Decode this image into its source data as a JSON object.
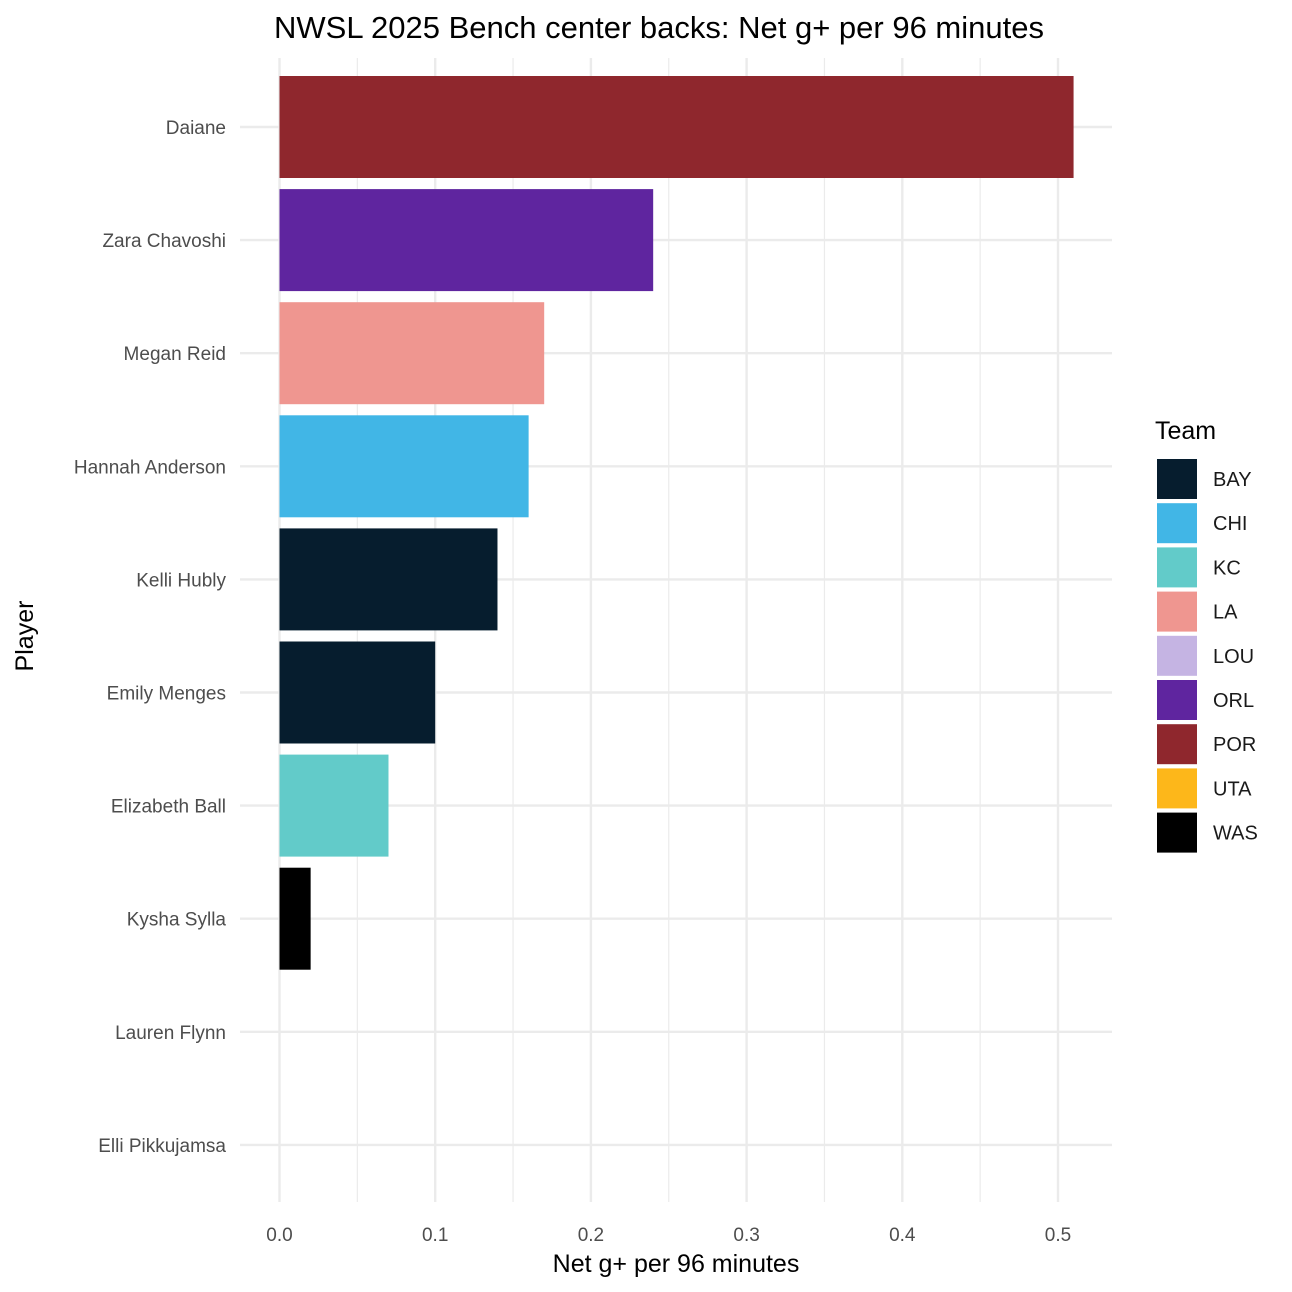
{
  "chart_data": {
    "type": "bar",
    "orientation": "horizontal",
    "title": "NWSL 2025 Bench center backs: Net g+ per 96 minutes",
    "xlabel": "Net g+ per 96 minutes",
    "ylabel": "Player",
    "xlim": [
      -0.025,
      0.535
    ],
    "x_ticks": [
      0.0,
      0.1,
      0.2,
      0.3,
      0.4,
      0.5
    ],
    "x_tick_labels": [
      "0.0",
      "0.1",
      "0.2",
      "0.3",
      "0.4",
      "0.5"
    ],
    "grid": true,
    "legend": {
      "title": "Team",
      "position": "right",
      "entries": [
        {
          "label": "BAY",
          "color": "#061d2e"
        },
        {
          "label": "CHI",
          "color": "#41b6e6"
        },
        {
          "label": "KC",
          "color": "#62cbc9"
        },
        {
          "label": "LA",
          "color": "#ef9690"
        },
        {
          "label": "LOU",
          "color": "#c5b4e3"
        },
        {
          "label": "ORL",
          "color": "#5f259f"
        },
        {
          "label": "POR",
          "color": "#8f272d"
        },
        {
          "label": "UTA",
          "color": "#fdb71a"
        },
        {
          "label": "WAS",
          "color": "#000000"
        }
      ]
    },
    "bars": [
      {
        "player": "Daiane",
        "team": "POR",
        "value": 0.51
      },
      {
        "player": "Zara Chavoshi",
        "team": "ORL",
        "value": 0.24
      },
      {
        "player": "Megan Reid",
        "team": "LA",
        "value": 0.17
      },
      {
        "player": "Hannah Anderson",
        "team": "CHI",
        "value": 0.16
      },
      {
        "player": "Kelli Hubly",
        "team": "BAY",
        "value": 0.14
      },
      {
        "player": "Emily Menges",
        "team": "BAY",
        "value": 0.1
      },
      {
        "player": "Elizabeth Ball",
        "team": "KC",
        "value": 0.07
      },
      {
        "player": "Kysha Sylla",
        "team": "WAS",
        "value": 0.02
      },
      {
        "player": "Lauren Flynn",
        "team": "UTA",
        "value": 0.0
      },
      {
        "player": "Elli Pikkujamsa",
        "team": "LOU",
        "value": 0.0
      }
    ]
  }
}
